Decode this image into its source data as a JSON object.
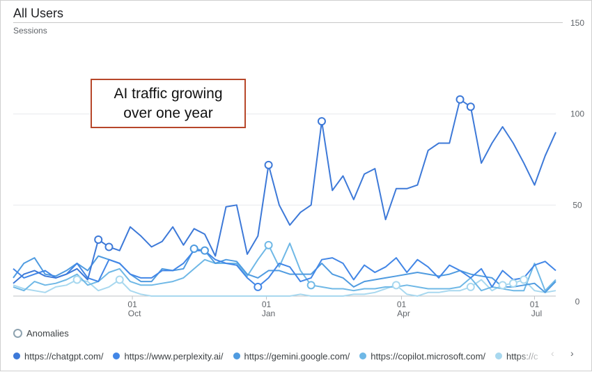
{
  "header": {
    "title": "All Users",
    "metric_label": "Sessions"
  },
  "annotation": {
    "line1": "AI traffic growing",
    "line2": "over one year"
  },
  "anomalies_label": "Anomalies",
  "legend": {
    "items": [
      {
        "label": "https://chatgpt.com/",
        "color": "#3d79d8"
      },
      {
        "label": "https://www.perplexity.ai/",
        "color": "#4286e6"
      },
      {
        "label": "https://gemini.google.com/",
        "color": "#4f9be0"
      },
      {
        "label": "https://copilot.microsoft.com/",
        "color": "#6fb8e6"
      },
      {
        "label": "https://c",
        "color": "#a8d8ef"
      }
    ],
    "prev_icon": "‹",
    "next_icon": "›"
  },
  "chart_data": {
    "type": "line",
    "ylabel": "Sessions",
    "ylim": [
      0,
      150
    ],
    "yticks": [
      0,
      50,
      100,
      150
    ],
    "xlim": [
      0,
      51
    ],
    "xticks": [
      {
        "x": 11.2,
        "day": "01",
        "month": "Oct"
      },
      {
        "x": 23.8,
        "day": "01",
        "month": "Jan"
      },
      {
        "x": 36.5,
        "day": "01",
        "month": "Apr"
      },
      {
        "x": 49.0,
        "day": "01",
        "month": "Jul"
      }
    ],
    "grid": true,
    "series": [
      {
        "name": "https://chatgpt.com/",
        "color": "#3d79d8",
        "values": [
          7,
          12,
          14,
          11,
          10,
          12,
          15,
          9,
          31,
          27,
          25,
          38,
          33,
          27,
          30,
          38,
          28,
          37,
          34,
          22,
          49,
          50,
          23,
          33,
          72,
          50,
          39,
          46,
          50,
          96,
          58,
          66,
          53,
          67,
          70,
          42,
          59,
          59,
          61,
          80,
          84,
          84,
          108,
          104,
          73,
          84,
          93,
          84,
          73,
          61,
          77,
          90
        ],
        "anomalies": [
          8,
          9,
          24,
          29,
          42,
          43
        ]
      },
      {
        "name": "https://www.perplexity.ai/",
        "color": "#4286e6",
        "values": [
          15,
          10,
          12,
          14,
          10,
          12,
          18,
          10,
          8,
          20,
          18,
          12,
          10,
          10,
          14,
          14,
          18,
          25,
          25,
          20,
          18,
          17,
          10,
          5,
          10,
          18,
          16,
          8,
          10,
          20,
          21,
          18,
          9,
          17,
          13,
          16,
          21,
          13,
          20,
          16,
          10,
          17,
          14,
          10,
          15,
          5,
          14,
          9,
          10,
          17,
          19,
          14
        ],
        "anomalies": [
          23
        ]
      },
      {
        "name": "https://gemini.google.com/",
        "color": "#4f9be0",
        "values": [
          10,
          18,
          21,
          12,
          11,
          14,
          18,
          14,
          22,
          20,
          18,
          12,
          8,
          8,
          15,
          14,
          15,
          26,
          25,
          18,
          20,
          19,
          12,
          10,
          14,
          14,
          12,
          12,
          12,
          18,
          12,
          10,
          5,
          8,
          9,
          10,
          11,
          12,
          13,
          12,
          11,
          12,
          14,
          12,
          11,
          10,
          5,
          5,
          6,
          7,
          2,
          8
        ],
        "anomalies": [
          17,
          18
        ]
      },
      {
        "name": "https://copilot.microsoft.com/",
        "color": "#6fb8e6",
        "values": [
          5,
          3,
          8,
          6,
          7,
          9,
          12,
          6,
          8,
          13,
          15,
          8,
          6,
          6,
          7,
          8,
          10,
          15,
          20,
          18,
          18,
          18,
          11,
          20,
          28,
          16,
          29,
          14,
          6,
          5,
          4,
          4,
          3,
          4,
          4,
          5,
          5,
          6,
          5,
          4,
          4,
          4,
          5,
          10,
          3,
          5,
          4,
          3,
          3,
          18,
          3,
          9
        ],
        "anomalies": [
          24,
          28
        ]
      },
      {
        "name": "https://c",
        "color": "#a8d8ef",
        "values": [
          6,
          4,
          3,
          2,
          5,
          6,
          9,
          8,
          3,
          5,
          9,
          3,
          1,
          0,
          0,
          0,
          0,
          0,
          0,
          0,
          0,
          0,
          0,
          0,
          0,
          0,
          0,
          1,
          0,
          0,
          0,
          0,
          1,
          1,
          2,
          4,
          6,
          1,
          0,
          2,
          2,
          3,
          3,
          5,
          9,
          3,
          6,
          7,
          9,
          3,
          2,
          3
        ],
        "anomalies": [
          6,
          10,
          36,
          43,
          46,
          47,
          48
        ]
      }
    ]
  }
}
